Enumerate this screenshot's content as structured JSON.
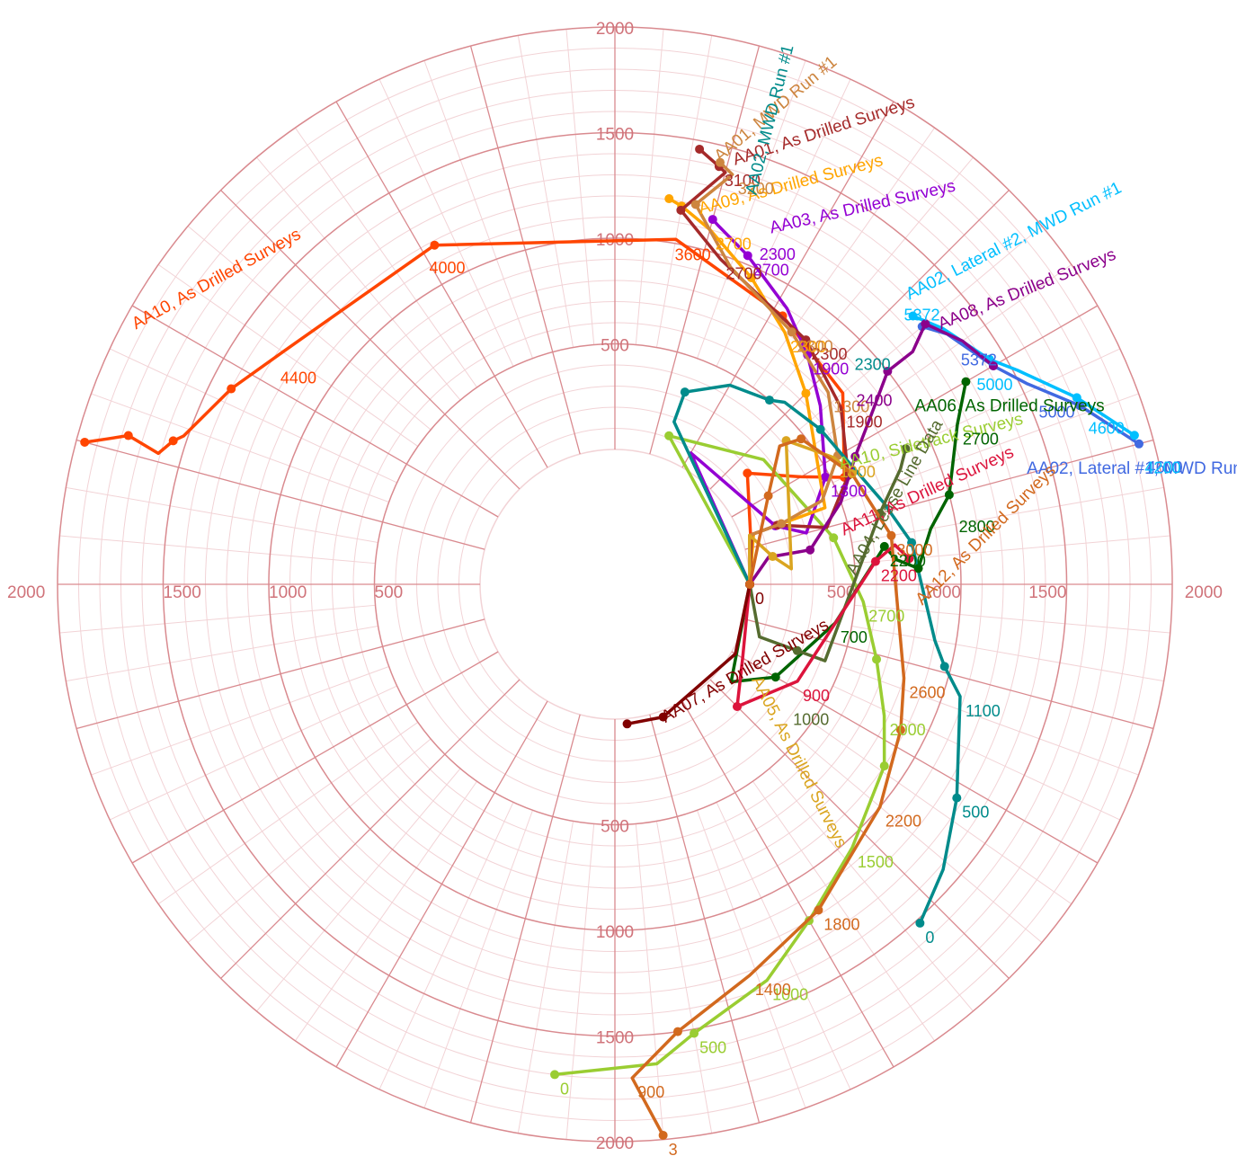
{
  "chart_data": {
    "type": "polar-line",
    "title": "",
    "radial_axis": {
      "max": 2000,
      "ring_step": 500,
      "minor_ring_step": 100,
      "tick_labels": [
        "500",
        "1000",
        "1500",
        "2000"
      ]
    },
    "angular_axis": {
      "major_spoke_step_deg": 15,
      "minor_spoke_step_deg": 5
    },
    "grid": true,
    "colors": {
      "major_grid": "#d98a8f",
      "minor_grid": "#f2d3d6",
      "axis_text": "#d0737a"
    },
    "series": [
      {
        "name": "AA10, As Drilled Surveys",
        "color": "#ff4500",
        "points": [
          [
            0,
            0
          ],
          [
            45,
            -20
          ],
          [
            180,
            -40
          ],
          [
            380,
            -30
          ],
          [
            560,
            -25
          ],
          [
            770,
            -40
          ],
          [
            860,
            -58
          ],
          [
            1020,
            -80
          ],
          [
            1180,
            -118
          ],
          [
            1280,
            -145
          ],
          [
            1400,
            -153
          ],
          [
            1520,
            -161
          ],
          [
            1560,
            -162
          ],
          [
            1610,
            -164
          ],
          [
            1770,
            -163
          ],
          [
            1860,
            -164
          ],
          [
            1960,
            -165
          ]
        ],
        "labels": [
          [
            1010,
            -81,
            "3600"
          ],
          [
            1170,
            -120,
            "4000"
          ],
          [
            1280,
            -147,
            "4400"
          ]
        ],
        "name_label": {
          "at": [
            1930,
            -152
          ],
          "rotate": -29,
          "anchor": "start"
        }
      },
      {
        "name": "AA10, Sidetrack Surveys",
        "color": "#9acd32",
        "points": [
          [
            1700,
            97
          ],
          [
            1640,
            85
          ],
          [
            1520,
            80
          ],
          [
            1370,
            69
          ],
          [
            1200,
            60
          ],
          [
            1040,
            48
          ],
          [
            900,
            34
          ],
          [
            780,
            26
          ],
          [
            650,
            16
          ],
          [
            540,
            4
          ],
          [
            420,
            -12
          ],
          [
            280,
            -40
          ],
          [
            110,
            -70
          ],
          [
            0,
            0
          ]
        ],
        "labels": [
          [
            1700,
            97,
            "0"
          ],
          [
            1520,
            80,
            "500"
          ],
          [
            1370,
            69,
            "1000"
          ],
          [
            1040,
            48,
            "1500"
          ],
          [
            780,
            26,
            "2000"
          ],
          [
            540,
            4,
            "2700"
          ]
        ],
        "name_label": {
          "at": [
            560,
            -27
          ],
          "rotate": -14,
          "anchor": "start"
        }
      },
      {
        "name": "AA03, As Drilled Surveys",
        "color": "#9400d3",
        "points": [
          [
            0,
            0
          ],
          [
            80,
            -60
          ],
          [
            170,
            -20
          ],
          [
            300,
            -15
          ],
          [
            480,
            -27
          ],
          [
            650,
            -41
          ],
          [
            780,
            -50
          ],
          [
            900,
            -58
          ],
          [
            1040,
            -68
          ],
          [
            1130,
            -74
          ],
          [
            1150,
            -75
          ]
        ],
        "labels": [
          [
            480,
            -27,
            "1300"
          ],
          [
            780,
            -50,
            "1900"
          ],
          [
            1040,
            -68,
            "2700"
          ],
          [
            1120,
            -68,
            "2300"
          ]
        ],
        "name_label": {
          "at": [
            1180,
            -66
          ],
          "rotate": -13,
          "anchor": "start"
        }
      },
      {
        "name": "AA09, As Drilled Surveys",
        "color": "#ffa500",
        "points": [
          [
            0,
            0
          ],
          [
            60,
            -20
          ],
          [
            200,
            -20
          ],
          [
            420,
            -20
          ],
          [
            640,
            -45
          ],
          [
            800,
            -56
          ],
          [
            950,
            -66
          ],
          [
            1100,
            -75
          ],
          [
            1180,
            -80
          ],
          [
            1205,
            -82
          ]
        ],
        "labels": [
          [
            800,
            -56,
            "2300"
          ],
          [
            1100,
            -75,
            "2700"
          ]
        ],
        "name_label": {
          "at": [
            1160,
            -77
          ],
          "rotate": -15,
          "anchor": "start"
        }
      },
      {
        "name": "AA01, As Drilled Surveys",
        "color": "#a52a2a",
        "points": [
          [
            0,
            0
          ],
          [
            50,
            -20
          ],
          [
            180,
            -20
          ],
          [
            400,
            -15
          ],
          [
            580,
            -25
          ],
          [
            720,
            -38
          ],
          [
            830,
            -52
          ],
          [
            980,
            -72
          ],
          [
            1160,
            -80
          ],
          [
            1380,
            -75
          ],
          [
            1400,
            -76
          ],
          [
            1460,
            -79
          ]
        ],
        "labels": [
          [
            720,
            -38,
            "1900"
          ],
          [
            830,
            -52,
            "2300"
          ],
          [
            980,
            -72,
            "2700"
          ],
          [
            1400,
            -76,
            "3100"
          ]
        ],
        "name_label": {
          "at": [
            1425,
            -74
          ],
          "rotate": -18,
          "anchor": "start"
        }
      },
      {
        "name": "AA01, MWD Run #1",
        "color": "#cd853f",
        "points": [
          [
            0,
            0
          ],
          [
            40,
            -20
          ],
          [
            200,
            -20
          ],
          [
            420,
            -22
          ],
          [
            580,
            -30
          ],
          [
            720,
            -42
          ],
          [
            820,
            -55
          ],
          [
            960,
            -70
          ],
          [
            1200,
            -78
          ],
          [
            1380,
            -74
          ],
          [
            1420,
            -76
          ]
        ],
        "labels": [
          [
            720,
            -42,
            "1300"
          ],
          [
            820,
            -55,
            "2300"
          ],
          [
            1380,
            -74,
            "3200"
          ]
        ],
        "name_label": {
          "at": [
            1420,
            -76
          ],
          "rotate": -40,
          "anchor": "start"
        }
      },
      {
        "name": "AA02, MWD Run #1",
        "color": "#008b8b",
        "points": [
          [
            1520,
            48
          ],
          [
            1420,
            41
          ],
          [
            1270,
            32
          ],
          [
            1080,
            18
          ],
          [
            970,
            14
          ],
          [
            900,
            10
          ],
          [
            780,
            -8
          ],
          [
            690,
            -17
          ],
          [
            580,
            -37
          ],
          [
            540,
            -47
          ],
          [
            500,
            -50
          ],
          [
            450,
            -60
          ],
          [
            330,
            -70
          ],
          [
            180,
            -70
          ],
          [
            0,
            0
          ]
        ],
        "labels": [
          [
            1520,
            48,
            "0"
          ],
          [
            1270,
            32,
            "500"
          ],
          [
            1080,
            18,
            "1100"
          ],
          [
            930,
            -45,
            "2300"
          ]
        ],
        "name_label": {
          "at": [
            1320,
            -70
          ],
          "rotate": -76,
          "anchor": "start"
        }
      },
      {
        "name": "AA02, Lateral #1, MWD Run #4",
        "color": "#4169e1",
        "points": [
          [
            1260,
            -40
          ],
          [
            1330,
            -37
          ],
          [
            1430,
            -30
          ],
          [
            1530,
            -26
          ],
          [
            1720,
            -21
          ],
          [
            1930,
            -15
          ]
        ],
        "labels": [
          [
            1930,
            -14,
            "4600"
          ],
          [
            1530,
            -24,
            "5000"
          ],
          [
            1330,
            -35,
            "5372"
          ]
        ],
        "name_label": {
          "at": [
            1380,
            -15
          ],
          "rotate": 0,
          "anchor": "start"
        }
      },
      {
        "name": "AA02, Lateral #2, MWD Run #1",
        "color": "#00bfff",
        "points": [
          [
            1260,
            -42
          ],
          [
            1330,
            -38
          ],
          [
            1430,
            -31
          ],
          [
            1520,
            -28
          ],
          [
            1720,
            -22
          ],
          [
            1920,
            -16
          ]
        ],
        "labels": [
          [
            1920,
            -14,
            "4200"
          ],
          [
            1720,
            -20,
            "4600"
          ],
          [
            1330,
            -31,
            "5000"
          ],
          [
            1260,
            -45,
            "5372"
          ]
        ],
        "name_label": {
          "at": [
            1300,
            -44
          ],
          "rotate": -27,
          "anchor": "start"
        }
      },
      {
        "name": "AA08, As Drilled Surveys",
        "color": "#8b008b",
        "points": [
          [
            0,
            0
          ],
          [
            100,
            -10
          ],
          [
            300,
            -10
          ],
          [
            500,
            -20
          ],
          [
            650,
            -28
          ],
          [
            800,
            -33
          ],
          [
            1000,
            -38
          ],
          [
            1150,
            -38
          ],
          [
            1280,
            -40
          ],
          [
            1370,
            -35
          ],
          [
            1430,
            -30
          ]
        ],
        "labels": [
          [
            820,
            -40,
            "2400"
          ]
        ],
        "name_label": {
          "at": [
            1320,
            -38
          ],
          "rotate": -22,
          "anchor": "start"
        }
      },
      {
        "name": "AA06, As Drilled Surveys",
        "color": "#006400",
        "points": [
          [
            0,
            0
          ],
          [
            80,
            40
          ],
          [
            240,
            30
          ],
          [
            420,
            10
          ],
          [
            650,
            -8
          ],
          [
            700,
            -5
          ],
          [
            800,
            -3
          ],
          [
            880,
            -10
          ],
          [
            1000,
            -15
          ],
          [
            1150,
            -25
          ],
          [
            1280,
            -30
          ]
        ],
        "labels": [
          [
            420,
            10,
            "700"
          ],
          [
            650,
            -8,
            "2200"
          ],
          [
            1150,
            -25,
            "2700"
          ],
          [
            1000,
            -12,
            "2800"
          ]
        ],
        "name_label": {
          "at": [
            1000,
            -30
          ],
          "rotate": 0,
          "anchor": "start"
        }
      },
      {
        "name": "AA04, Lease Line Data",
        "color": "#556b2f",
        "points": [
          [
            0,
            0
          ],
          [
            90,
            20
          ],
          [
            280,
            20
          ],
          [
            420,
            20
          ],
          [
            660,
            -15
          ],
          [
            820,
            -22
          ],
          [
            880,
            -25
          ]
        ],
        "labels": [
          [
            360,
            35,
            "1000"
          ]
        ],
        "name_label": {
          "at": [
            500,
            -2
          ],
          "rotate": -60,
          "anchor": "start"
        }
      },
      {
        "name": "AA05, As Drilled Surveys",
        "color": "#daa520",
        "points": [
          [
            0,
            0
          ],
          [
            40,
            -20
          ],
          [
            120,
            -10
          ],
          [
            200,
            -5
          ],
          [
            420,
            -40
          ],
          [
            560,
            -30
          ],
          [
            600,
            -25
          ]
        ],
        "labels": [
          [
            560,
            -30,
            "1000"
          ]
        ],
        "name_label": {
          "at": [
            150,
            35
          ],
          "rotate": 63,
          "anchor": "start"
        }
      },
      {
        "name": "AA11, As Drilled Surveys",
        "color": "#dc143c",
        "points": [
          [
            0,
            0
          ],
          [
            60,
            30
          ],
          [
            180,
            45
          ],
          [
            340,
            28
          ],
          [
            600,
            -5
          ],
          [
            700,
            -8
          ],
          [
            760,
            -5
          ]
        ],
        "labels": [
          [
            340,
            28,
            "900"
          ],
          [
            600,
            -5,
            "2200"
          ]
        ],
        "name_label": {
          "at": [
            470,
            -12
          ],
          "rotate": -25,
          "anchor": "start"
        }
      },
      {
        "name": "AA07, As Drilled Surveys",
        "color": "#800000",
        "points": [
          [
            0,
            0
          ],
          [
            20,
            30
          ],
          [
            30,
            70
          ],
          [
            25,
            85
          ]
        ],
        "labels": [
          [
            0,
            0,
            "0"
          ]
        ],
        "name_label": {
          "at": [
            60,
            70
          ],
          "rotate": -30,
          "anchor": "start"
        }
      },
      {
        "name": "AA12, As Drilled Surveys",
        "color": "#d2691e",
        "points": [
          [
            1980,
            85
          ],
          [
            1700,
            88
          ],
          [
            1500,
            82
          ],
          [
            1320,
            71
          ],
          [
            1180,
            58
          ],
          [
            1000,
            40
          ],
          [
            880,
            27
          ],
          [
            800,
            18
          ],
          [
            690,
            -10
          ],
          [
            600,
            -25
          ],
          [
            480,
            -38
          ],
          [
            380,
            -40
          ],
          [
            200,
            -30
          ],
          [
            0,
            0
          ]
        ],
        "labels": [
          [
            1980,
            85,
            "3"
          ],
          [
            1700,
            88,
            "900"
          ],
          [
            1320,
            71,
            "1400"
          ],
          [
            1180,
            58,
            "1800"
          ],
          [
            1000,
            40,
            "2200"
          ],
          [
            800,
            18,
            "2600"
          ],
          [
            690,
            -10,
            "3000"
          ]
        ],
        "name_label": {
          "at": [
            820,
            4
          ],
          "rotate": -45,
          "anchor": "start"
        }
      }
    ]
  }
}
